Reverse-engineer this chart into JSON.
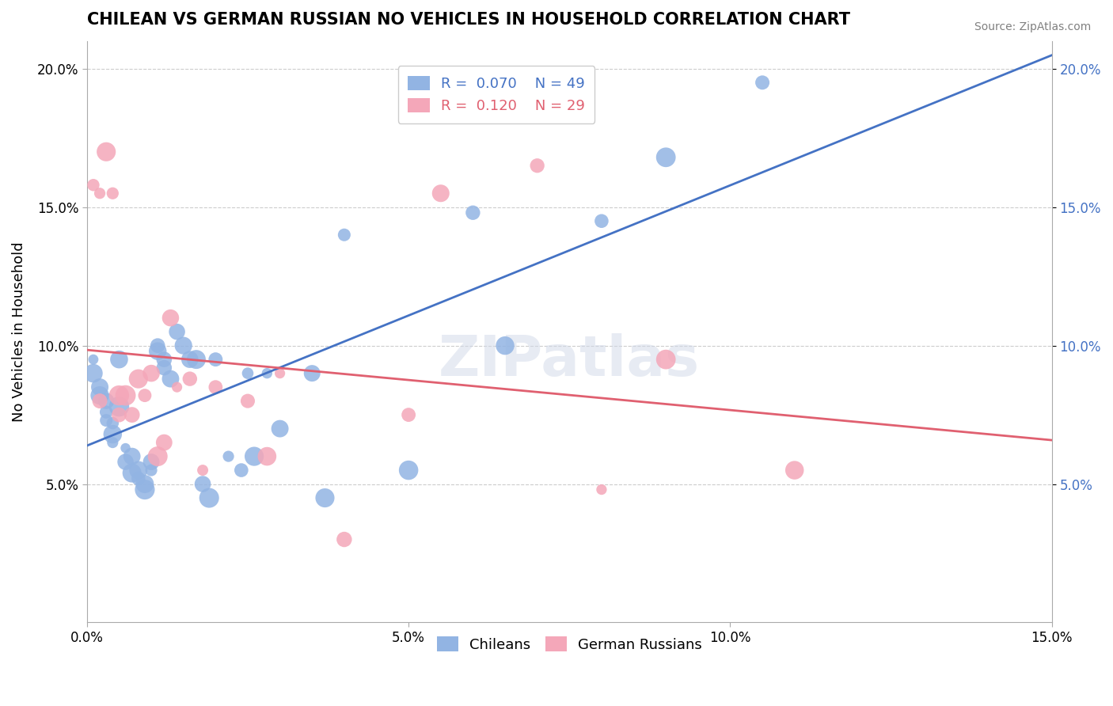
{
  "title": "CHILEAN VS GERMAN RUSSIAN NO VEHICLES IN HOUSEHOLD CORRELATION CHART",
  "source_text": "Source: ZipAtlas.com",
  "xlabel": "",
  "ylabel": "No Vehicles in Household",
  "xlim": [
    0.0,
    0.15
  ],
  "ylim": [
    0.0,
    0.21
  ],
  "xtick_labels": [
    "0.0%",
    "5.0%",
    "10.0%",
    "15.0%"
  ],
  "xtick_vals": [
    0.0,
    0.05,
    0.1,
    0.15
  ],
  "ytick_labels": [
    "5.0%",
    "10.0%",
    "15.0%",
    "20.0%"
  ],
  "ytick_vals": [
    0.05,
    0.1,
    0.15,
    0.2
  ],
  "legend_r1": "R =  0.070   N = 49",
  "legend_r2": "R =  0.120   N = 29",
  "chilean_color": "#92b4e3",
  "german_russian_color": "#f4a7b9",
  "chilean_line_color": "#4472c4",
  "german_russian_line_color": "#e06070",
  "watermark": "ZIPatlas",
  "chilean_R": 0.07,
  "chilean_N": 49,
  "german_russian_R": 0.12,
  "german_russian_N": 29,
  "chileans_x": [
    0.001,
    0.001,
    0.002,
    0.002,
    0.003,
    0.003,
    0.003,
    0.004,
    0.004,
    0.004,
    0.005,
    0.005,
    0.006,
    0.006,
    0.007,
    0.007,
    0.008,
    0.008,
    0.009,
    0.009,
    0.01,
    0.01,
    0.011,
    0.011,
    0.012,
    0.012,
    0.013,
    0.014,
    0.015,
    0.016,
    0.017,
    0.018,
    0.019,
    0.02,
    0.022,
    0.024,
    0.025,
    0.026,
    0.028,
    0.03,
    0.035,
    0.037,
    0.04,
    0.05,
    0.06,
    0.065,
    0.08,
    0.09,
    0.105
  ],
  "chileans_y": [
    0.09,
    0.095,
    0.085,
    0.082,
    0.08,
    0.076,
    0.073,
    0.068,
    0.072,
    0.065,
    0.095,
    0.078,
    0.063,
    0.058,
    0.054,
    0.06,
    0.055,
    0.052,
    0.048,
    0.05,
    0.058,
    0.055,
    0.1,
    0.098,
    0.095,
    0.092,
    0.088,
    0.105,
    0.1,
    0.095,
    0.095,
    0.05,
    0.045,
    0.095,
    0.06,
    0.055,
    0.09,
    0.06,
    0.09,
    0.07,
    0.09,
    0.045,
    0.14,
    0.055,
    0.148,
    0.1,
    0.145,
    0.168,
    0.195
  ],
  "german_russians_x": [
    0.001,
    0.002,
    0.002,
    0.003,
    0.004,
    0.005,
    0.005,
    0.006,
    0.007,
    0.008,
    0.009,
    0.01,
    0.011,
    0.012,
    0.013,
    0.014,
    0.016,
    0.018,
    0.02,
    0.025,
    0.028,
    0.03,
    0.04,
    0.05,
    0.055,
    0.07,
    0.08,
    0.09,
    0.11
  ],
  "german_russians_y": [
    0.158,
    0.08,
    0.155,
    0.17,
    0.155,
    0.075,
    0.082,
    0.082,
    0.075,
    0.088,
    0.082,
    0.09,
    0.06,
    0.065,
    0.11,
    0.085,
    0.088,
    0.055,
    0.085,
    0.08,
    0.06,
    0.09,
    0.03,
    0.075,
    0.155,
    0.165,
    0.048,
    0.095,
    0.055
  ]
}
